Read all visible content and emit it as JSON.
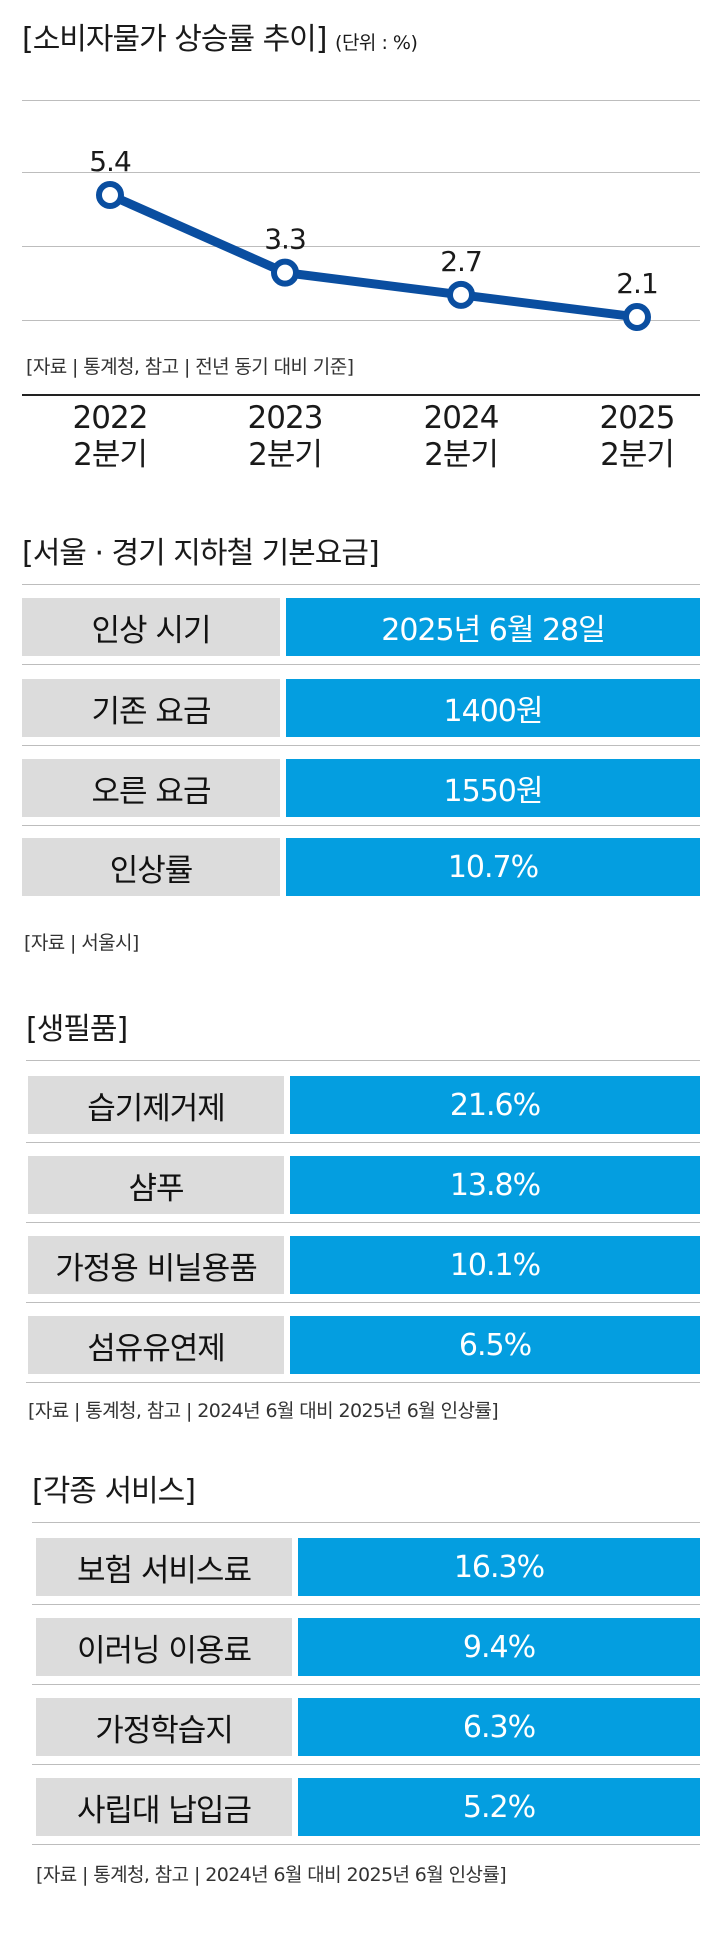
{
  "chart_data": {
    "type": "line",
    "title": "[소비자물가 상승률 추이]",
    "unit": "(단위 : %)",
    "x": [
      "2022\n2분기",
      "2023\n2분기",
      "2024\n2분기",
      "2025\n2분기"
    ],
    "tick_labels": [
      {
        "year": "2022",
        "quarter": "2분기"
      },
      {
        "year": "2023",
        "quarter": "2분기"
      },
      {
        "year": "2024",
        "quarter": "2분기"
      },
      {
        "year": "2025",
        "quarter": "2분기"
      }
    ],
    "series": [
      {
        "values": [
          5.4,
          3.3,
          2.7,
          2.1
        ],
        "labels": [
          "5.4",
          "3.3",
          "2.7",
          "2.1"
        ],
        "color": "#0a4ea0"
      }
    ],
    "grid": true,
    "source": "[자료 | 통계청, 참고 | 전년 동기 대비 기준]"
  },
  "subway": {
    "title": "[서울 · 경기 지하철 기본요금]",
    "rows": [
      {
        "label": "인상 시기",
        "value": "2025년 6월 28일"
      },
      {
        "label": "기존 요금",
        "value": "1400원"
      },
      {
        "label": "오른 요금",
        "value": "1550원"
      },
      {
        "label": "인상률",
        "value": "10.7%"
      }
    ],
    "source": "[자료 | 서울시]"
  },
  "necessities": {
    "title": "[생필품]",
    "rows": [
      {
        "label": "습기제거제",
        "value": "21.6%"
      },
      {
        "label": "샴푸",
        "value": "13.8%"
      },
      {
        "label": "가정용 비닐용품",
        "value": "10.1%"
      },
      {
        "label": "섬유유연제",
        "value": "6.5%"
      }
    ],
    "source": "[자료 | 통계청, 참고 | 2024년 6월 대비 2025년  6월 인상률]"
  },
  "services": {
    "title": "[각종 서비스]",
    "rows": [
      {
        "label": "보험 서비스료",
        "value": "16.3%"
      },
      {
        "label": "이러닝 이용료",
        "value": "9.4%"
      },
      {
        "label": "가정학습지",
        "value": "6.3%"
      },
      {
        "label": "사립대 납입금",
        "value": "5.2%"
      }
    ],
    "source": "[자료 | 통계청, 참고 | 2024년 6월 대비 2025년  6월 인상률]"
  },
  "colors": {
    "line": "#0a4ea0",
    "accent": "#049ee0",
    "label_bg": "#dcdcdc"
  }
}
